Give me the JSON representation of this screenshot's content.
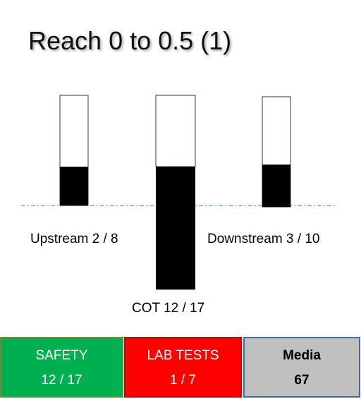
{
  "title": "Reach 0 to 0.5 (1)",
  "colors": {
    "bar_fill": "#000000",
    "bar_outline": "#1f3864",
    "baseline": "#5b9bd5",
    "safety": "#00b050",
    "lab_tests": "#ff0000",
    "media": "#c0c0c0"
  },
  "gauges": [
    {
      "label": "Upstream 2 / 8",
      "value": 2,
      "total": 8,
      "direction": "up"
    },
    {
      "label": "COT 12 / 17",
      "value": 12,
      "total": 17,
      "direction": "up-down"
    },
    {
      "label": "Downstream 3 / 10",
      "value": 3,
      "total": 10,
      "direction": "up"
    }
  ],
  "tiles": [
    {
      "label": "SAFETY",
      "value": "12 / 17",
      "color": "#00b050",
      "text_color": "#ffffff"
    },
    {
      "label": "LAB TESTS",
      "value": "1 / 7",
      "color": "#ff0000",
      "text_color": "#ffffff"
    },
    {
      "label": "Media",
      "value": "67",
      "color": "#c0c0c0",
      "text_color": "#000000"
    }
  ]
}
